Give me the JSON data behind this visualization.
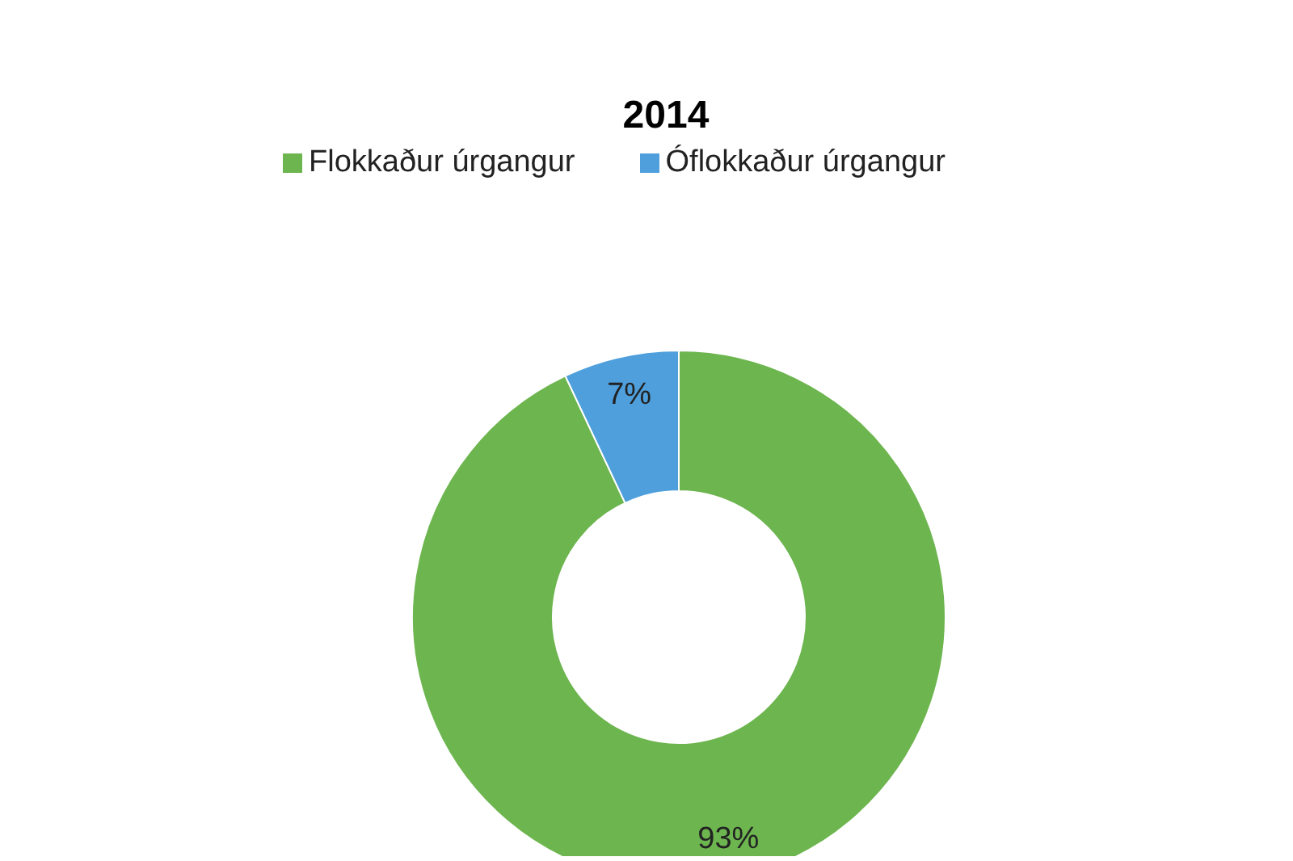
{
  "chart_data": {
    "type": "donut",
    "title": "2014",
    "categories": [
      "Flokkaður úrgangur",
      "Óflokkaður úrgangur"
    ],
    "values": [
      93,
      7
    ],
    "value_labels": [
      "93%",
      "7%"
    ],
    "colors": [
      "#6db54f",
      "#4f9fdc"
    ],
    "legend": "top"
  }
}
